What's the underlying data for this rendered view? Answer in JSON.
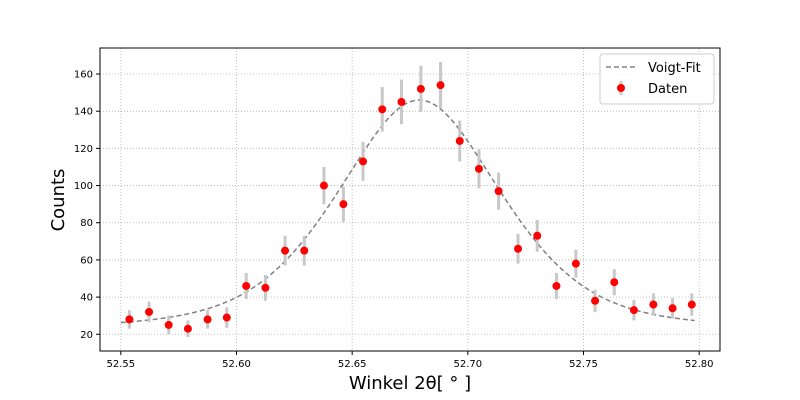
{
  "chart_data": {
    "type": "scatter",
    "title": "",
    "xlabel": "Winkel 2θ[ ° ]",
    "ylabel": "Counts",
    "xlim": [
      52.541,
      52.809
    ],
    "ylim": [
      11,
      174
    ],
    "xticks": [
      52.55,
      52.6,
      52.65,
      52.7,
      52.75,
      52.8
    ],
    "xtick_labels": [
      "52.55",
      "52.60",
      "52.65",
      "52.70",
      "52.75",
      "52.80"
    ],
    "yticks": [
      20,
      40,
      60,
      80,
      100,
      120,
      140,
      160
    ],
    "ytick_labels": [
      "20",
      "40",
      "60",
      "80",
      "100",
      "120",
      "140",
      "160"
    ],
    "grid": true,
    "legend_position": "top-right",
    "colors": {
      "data": "#ff0000",
      "fit": "#808080",
      "errorbar": "#c8c8c8",
      "grid": "#b0b0b0"
    },
    "series": [
      {
        "name": "Daten",
        "kind": "scatter-errorbar",
        "x": [
          52.5537,
          52.5622,
          52.5707,
          52.579,
          52.5875,
          52.5958,
          52.6042,
          52.6125,
          52.621,
          52.6293,
          52.6378,
          52.6462,
          52.6547,
          52.663,
          52.6713,
          52.6797,
          52.6882,
          52.6965,
          52.7048,
          52.7133,
          52.7217,
          52.73,
          52.7383,
          52.7467,
          52.755,
          52.7633,
          52.7718,
          52.7802,
          52.7885,
          52.7968
        ],
        "y": [
          28,
          32,
          25,
          23,
          28,
          29,
          46,
          45,
          65,
          65,
          100,
          90,
          113,
          141,
          145,
          152,
          154,
          124,
          109,
          97,
          66,
          73,
          46,
          58,
          38,
          48,
          33,
          36,
          34,
          36
        ],
        "err": [
          5,
          5.5,
          5,
          4.5,
          5,
          5.5,
          7,
          7,
          8,
          8,
          10,
          9.5,
          10.5,
          12,
          12,
          12.5,
          12.5,
          11,
          10.5,
          10,
          8,
          8.5,
          7,
          7.5,
          6,
          7,
          5.5,
          6,
          5.5,
          6
        ]
      },
      {
        "name": "Voigt-Fit",
        "kind": "dashed-line",
        "model": {
          "center": 52.679,
          "fwhm": 0.085,
          "amplitude": 126,
          "background": 20,
          "eta": 0.5
        },
        "x_range": [
          52.55,
          52.798
        ]
      }
    ]
  }
}
